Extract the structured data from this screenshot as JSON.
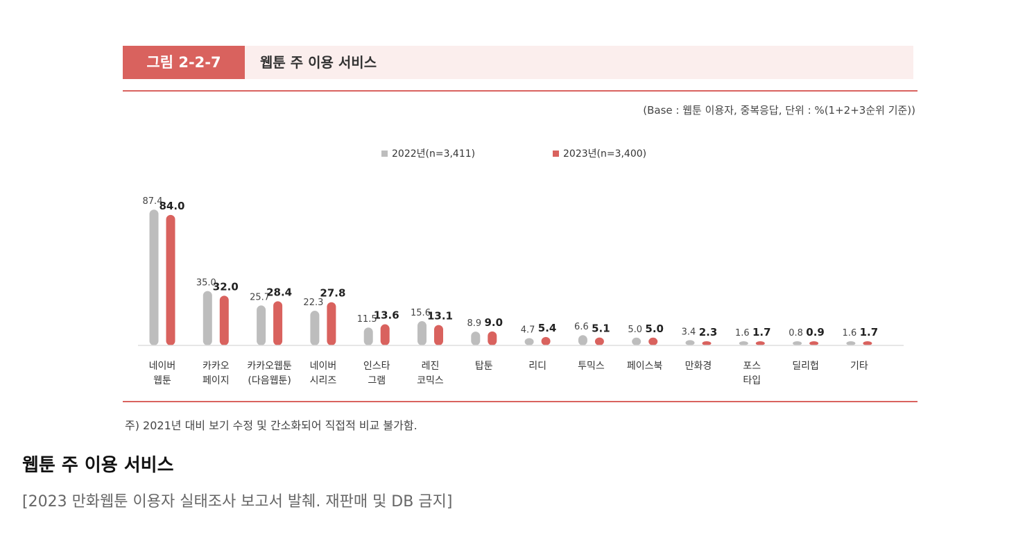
{
  "figure": {
    "label": "그림 2-2-7",
    "title": "웹툰 주 이용 서비스",
    "base_note": "(Base : 웹툰 이용자, 중복응답, 단위 : %(1+2+3순위 기준))",
    "footnote": "주) 2021년 대비 보기 수정 및 간소화되어 직접적 비교 불가함."
  },
  "caption": {
    "title": "웹툰 주 이용 서비스",
    "source": "[2023 만화웹툰 이용자 실태조사 보고서 발췌. 재판매 및 DB 금지]"
  },
  "colors": {
    "accent": "#d9625e",
    "series_2022": "#bdbdbd",
    "series_2023": "#d9625e"
  },
  "chart_data": {
    "type": "bar",
    "categories": [
      [
        "네이버",
        "웹툰"
      ],
      [
        "카카오",
        "페이지"
      ],
      [
        "카카오웹툰",
        "(다음웹툰)"
      ],
      [
        "네이버",
        "시리즈"
      ],
      [
        "인스타",
        "그램"
      ],
      [
        "레진",
        "코믹스"
      ],
      [
        "탑툰"
      ],
      [
        "리디"
      ],
      [
        "투믹스"
      ],
      [
        "페이스북"
      ],
      [
        "만화경"
      ],
      [
        "포스",
        "타입"
      ],
      [
        "딜리헙"
      ],
      [
        "기타"
      ]
    ],
    "series": [
      {
        "name": "2022년(n=3,411)",
        "values": [
          87.4,
          35.0,
          25.7,
          22.3,
          11.5,
          15.6,
          8.9,
          4.7,
          6.6,
          5.0,
          3.4,
          1.6,
          0.8,
          1.6
        ]
      },
      {
        "name": "2023년(n=3,400)",
        "values": [
          84.0,
          32.0,
          28.4,
          27.8,
          13.6,
          13.1,
          9.0,
          5.4,
          5.1,
          5.0,
          2.3,
          1.7,
          0.9,
          1.7
        ]
      }
    ],
    "ylim": [
      0,
      100
    ],
    "legend_position": "top-center",
    "grid": false
  }
}
